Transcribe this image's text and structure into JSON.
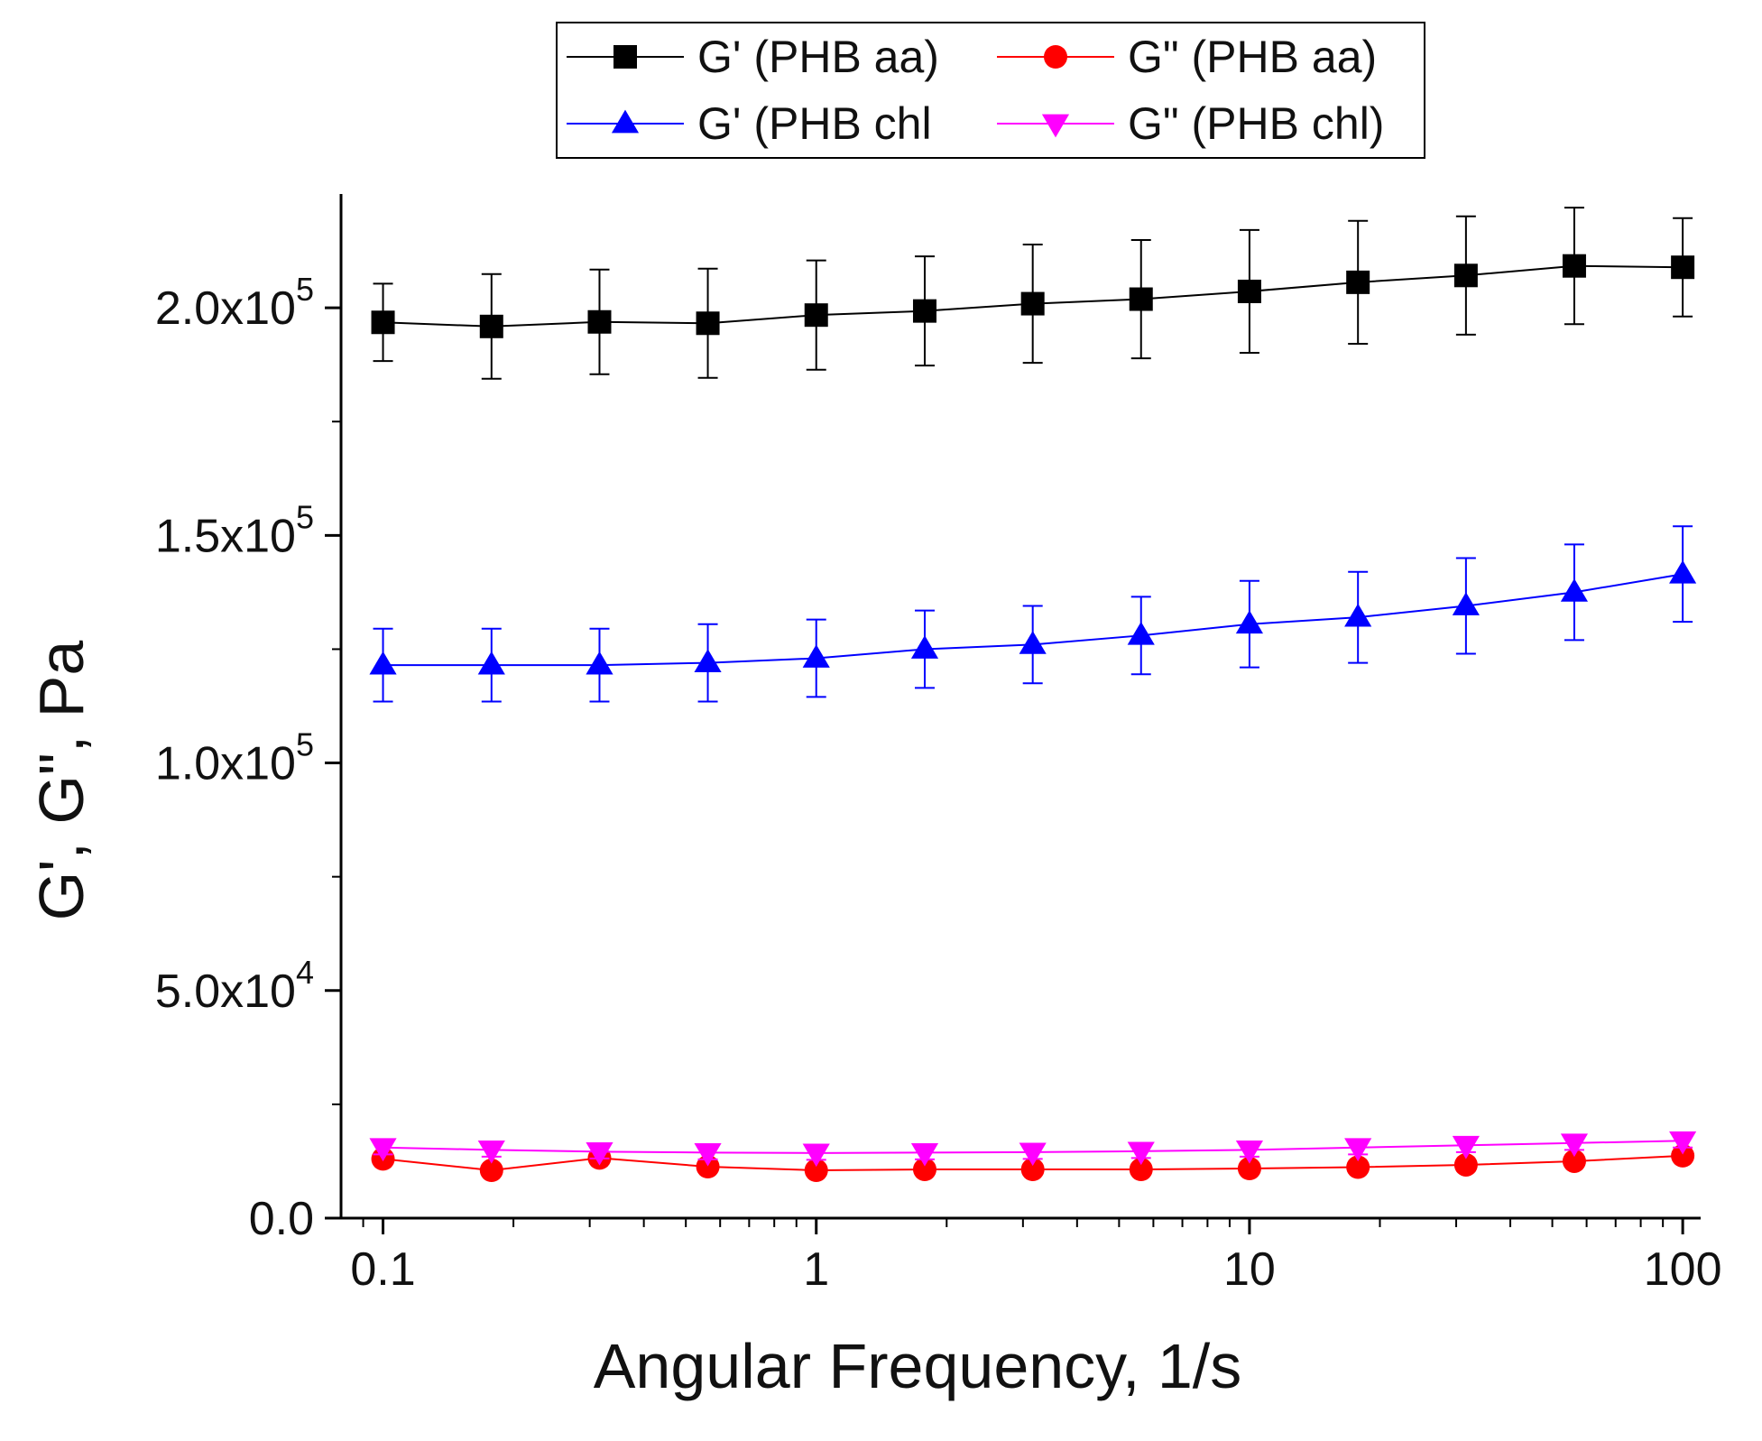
{
  "chart_data": {
    "type": "line",
    "title": "",
    "xlabel": "Angular Frequency, 1/s",
    "ylabel": "G', G\", Pa",
    "xscale": "log",
    "xlim": [
      0.08,
      110
    ],
    "ylim": [
      0,
      225000
    ],
    "x": [
      0.1,
      0.178,
      0.316,
      0.562,
      1,
      1.78,
      3.16,
      5.62,
      10,
      17.8,
      31.6,
      56.2,
      100
    ],
    "x_ticks": [
      {
        "value": 0.1,
        "label": "0.1"
      },
      {
        "value": 1,
        "label": "1"
      },
      {
        "value": 10,
        "label": "10"
      },
      {
        "value": 100,
        "label": "100"
      }
    ],
    "y_ticks": [
      {
        "value": 0,
        "mantissa": "0.0",
        "exp": ""
      },
      {
        "value": 50000,
        "mantissa": "5.0x10",
        "exp": "4"
      },
      {
        "value": 100000,
        "mantissa": "1.0x10",
        "exp": "5"
      },
      {
        "value": 150000,
        "mantissa": "1.5x10",
        "exp": "5"
      },
      {
        "value": 200000,
        "mantissa": "2.0x10",
        "exp": "5"
      }
    ],
    "legend_position": "top-center",
    "series": [
      {
        "name": "G' (PHB aa)",
        "color": "#000000",
        "marker": "square",
        "values": [
          196800,
          195900,
          196900,
          196600,
          198400,
          199300,
          200900,
          201900,
          203600,
          205600,
          207100,
          209200,
          208900
        ],
        "errors": [
          8500,
          11500,
          11500,
          12000,
          12000,
          12000,
          13000,
          13000,
          13500,
          13500,
          13000,
          12800,
          10800
        ]
      },
      {
        "name": "G\" (PHB aa)",
        "color": "#ff0000",
        "marker": "circle",
        "values": [
          13000,
          10500,
          13200,
          11300,
          10500,
          10700,
          10700,
          10700,
          10900,
          11200,
          11700,
          12500,
          13700
        ],
        "errors": [
          600,
          600,
          600,
          600,
          600,
          600,
          600,
          600,
          600,
          600,
          600,
          600,
          600
        ]
      },
      {
        "name": "G' (PHB chl",
        "color": "#0000ff",
        "marker": "triangle-up",
        "values": [
          121500,
          121500,
          121500,
          122000,
          123000,
          125000,
          126000,
          128000,
          130500,
          132000,
          134500,
          137500,
          141500
        ],
        "errors": [
          8000,
          8000,
          8000,
          8500,
          8500,
          8500,
          8500,
          8500,
          9500,
          10000,
          10500,
          10500,
          10500
        ]
      },
      {
        "name": "G\" (PHB chl)",
        "color": "#ff00ff",
        "marker": "triangle-down",
        "values": [
          15500,
          15000,
          14600,
          14400,
          14300,
          14400,
          14500,
          14700,
          15000,
          15500,
          16000,
          16500,
          17000
        ],
        "errors": [
          1500,
          1500,
          1500,
          1500,
          1500,
          1500,
          1500,
          1500,
          1500,
          1500,
          1500,
          1500,
          1500
        ]
      }
    ]
  }
}
